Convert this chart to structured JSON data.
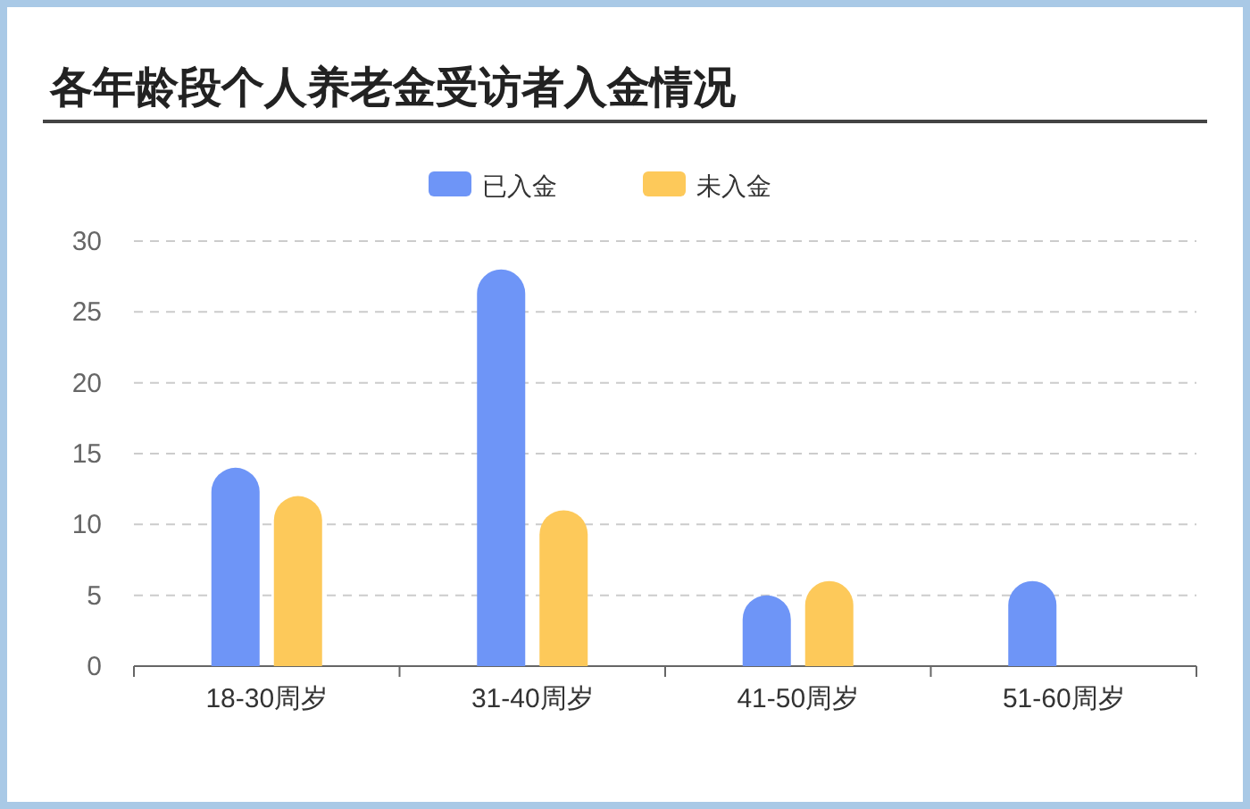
{
  "chart_data": {
    "type": "bar",
    "title": "各年龄段个人养老金受访者入金情况",
    "categories": [
      "18-30周岁",
      "31-40周岁",
      "41-50周岁",
      "51-60周岁"
    ],
    "series": [
      {
        "name": "已入金",
        "color": "#6e95f7",
        "values": [
          14,
          28,
          5,
          6
        ]
      },
      {
        "name": "未入金",
        "color": "#fdc95a",
        "values": [
          12,
          11,
          6,
          null
        ]
      }
    ],
    "ylim": [
      0,
      30
    ],
    "yticks": [
      0,
      5,
      10,
      15,
      20,
      25,
      30
    ],
    "grid": "y",
    "legend": "top"
  }
}
